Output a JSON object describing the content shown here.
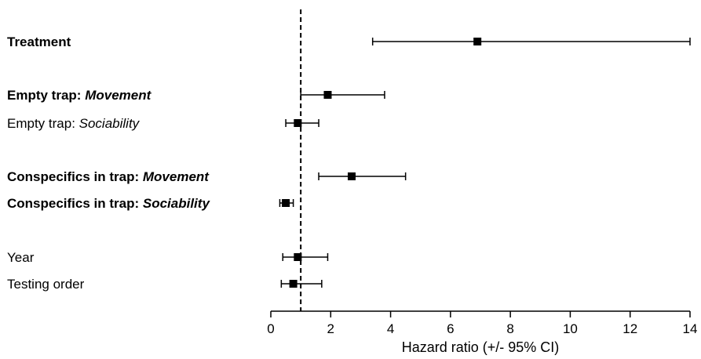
{
  "chart_data": {
    "type": "forest",
    "xlabel": "Hazard ratio (+/- 95% CI)",
    "xlim": [
      0,
      14
    ],
    "xticks": [
      0,
      2,
      4,
      6,
      8,
      10,
      12,
      14
    ],
    "reference_line": 1,
    "rows": [
      {
        "label": "Treatment",
        "bold": true,
        "italic_part": "",
        "estimate": 6.9,
        "lower": 3.4,
        "upper": 14.0
      },
      {
        "label": "Empty trap: ",
        "bold": true,
        "italic_part": "Movement",
        "estimate": 1.9,
        "lower": 1.0,
        "upper": 3.8
      },
      {
        "label": "Empty trap: ",
        "bold": false,
        "italic_part": "Sociability",
        "estimate": 0.9,
        "lower": 0.5,
        "upper": 1.6
      },
      {
        "label": "Conspecifics in trap: ",
        "bold": true,
        "italic_part": "Movement",
        "estimate": 2.7,
        "lower": 1.6,
        "upper": 4.5
      },
      {
        "label": "Conspecifics in trap: ",
        "bold": true,
        "italic_part": "Sociability",
        "estimate": 0.5,
        "lower": 0.3,
        "upper": 0.75
      },
      {
        "label": "Year",
        "bold": false,
        "italic_part": "",
        "estimate": 0.9,
        "lower": 0.4,
        "upper": 1.9
      },
      {
        "label": "Testing order",
        "bold": false,
        "italic_part": "",
        "estimate": 0.75,
        "lower": 0.35,
        "upper": 1.7
      }
    ]
  }
}
